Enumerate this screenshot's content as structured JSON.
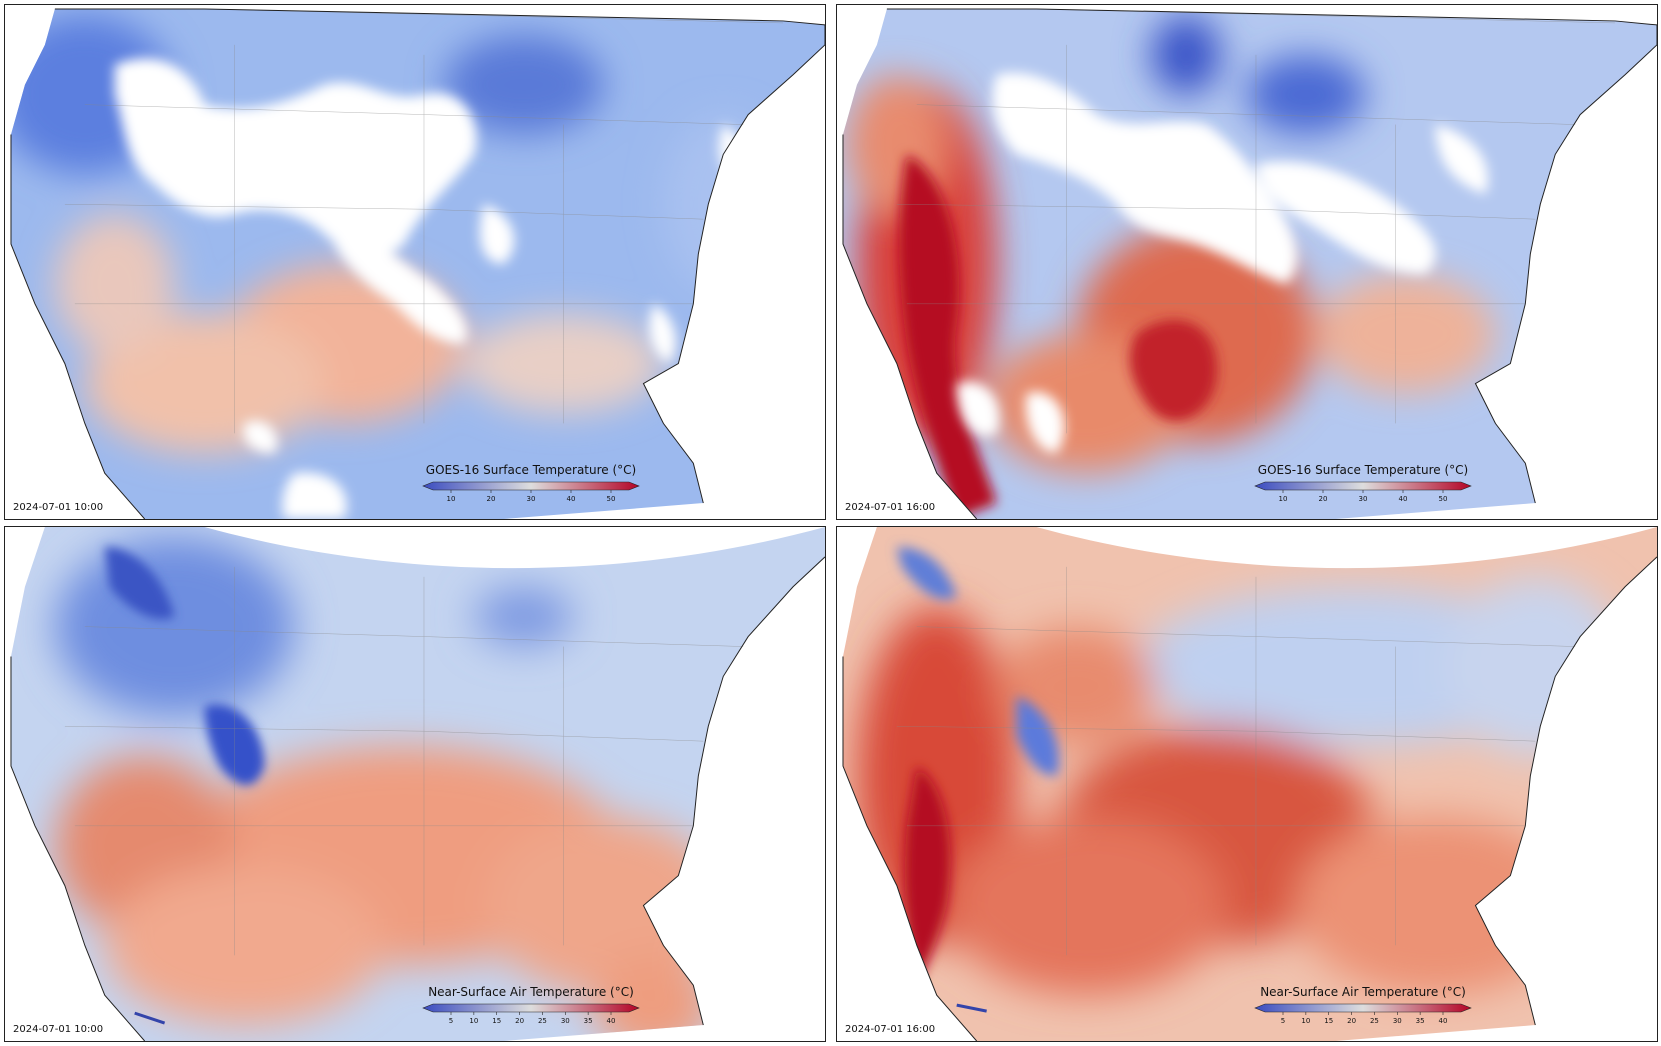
{
  "panels": [
    {
      "id": "p1",
      "timestamp": "2024-07-01 10:00",
      "legend_title": "GOES-16 Surface Temperature (°C)",
      "ticks": [
        "10",
        "20",
        "30",
        "40",
        "50"
      ],
      "colormap": "coolwarm"
    },
    {
      "id": "p2",
      "timestamp": "2024-07-01 16:00",
      "legend_title": "GOES-16 Surface Temperature (°C)",
      "ticks": [
        "10",
        "20",
        "30",
        "40",
        "50"
      ],
      "colormap": "coolwarm"
    },
    {
      "id": "p3",
      "timestamp": "2024-07-01 10:00",
      "legend_title": "Near-Surface Air Temperature (°C)",
      "ticks": [
        "5",
        "10",
        "15",
        "20",
        "25",
        "30",
        "35",
        "40"
      ],
      "colormap": "coolwarm"
    },
    {
      "id": "p4",
      "timestamp": "2024-07-01 16:00",
      "legend_title": "Near-Surface Air Temperature (°C)",
      "ticks": [
        "5",
        "10",
        "15",
        "20",
        "25",
        "30",
        "35",
        "40"
      ],
      "colormap": "coolwarm"
    }
  ],
  "colors": {
    "cold": "#3b4cc0",
    "mid": "#dddddd",
    "warm": "#b40426"
  }
}
